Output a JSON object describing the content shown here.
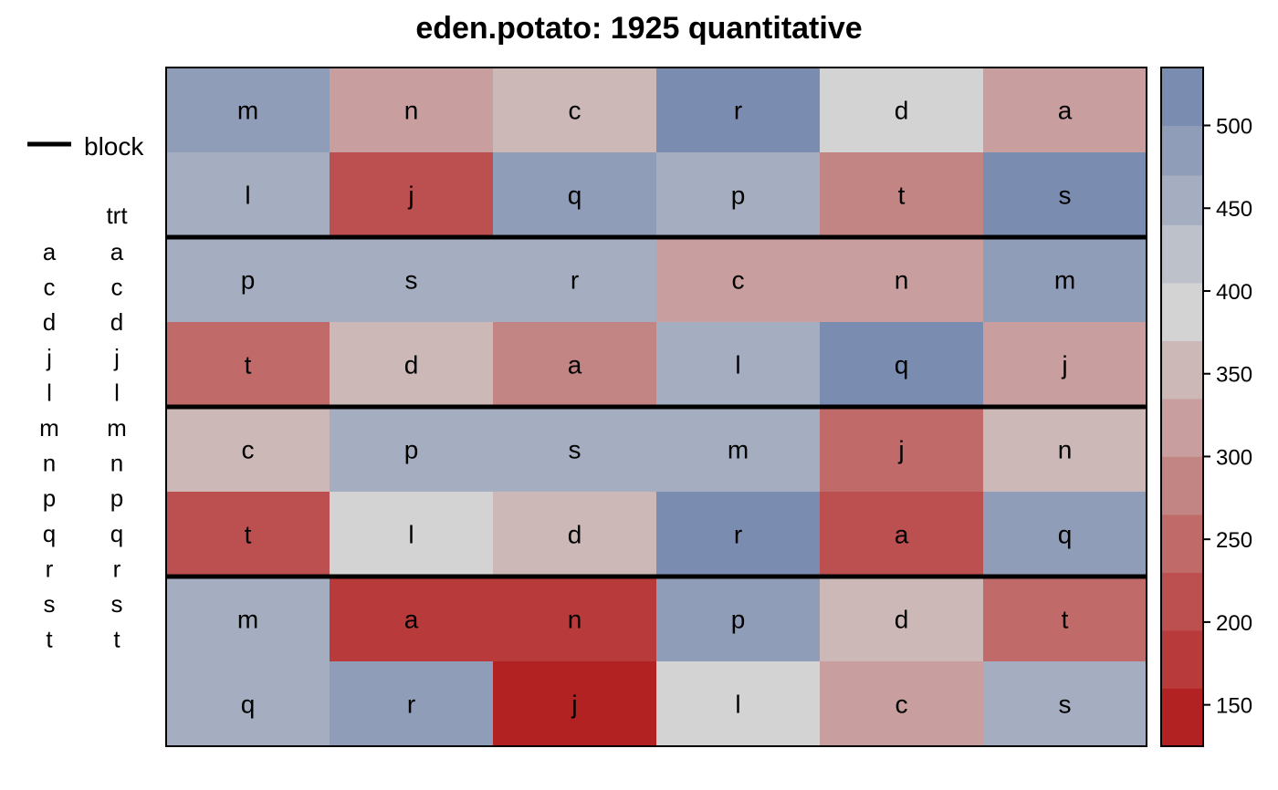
{
  "chart_data": {
    "type": "heatmap",
    "title": "eden.potato: 1925 quantitative",
    "xlabel": "",
    "ylabel": "",
    "rows": 8,
    "cols": 6,
    "cell_labels": [
      [
        "m",
        "n",
        "c",
        "r",
        "d",
        "a"
      ],
      [
        "l",
        "j",
        "q",
        "p",
        "t",
        "s"
      ],
      [
        "p",
        "s",
        "r",
        "c",
        "n",
        "m"
      ],
      [
        "t",
        "d",
        "a",
        "l",
        "q",
        "j"
      ],
      [
        "c",
        "p",
        "s",
        "m",
        "j",
        "n"
      ],
      [
        "t",
        "l",
        "d",
        "r",
        "a",
        "q"
      ],
      [
        "m",
        "a",
        "n",
        "p",
        "d",
        "t"
      ],
      [
        "q",
        "r",
        "j",
        "l",
        "c",
        "s"
      ]
    ],
    "values": [
      [
        480,
        310,
        355,
        510,
        385,
        310
      ],
      [
        440,
        215,
        480,
        440,
        290,
        510
      ],
      [
        440,
        440,
        440,
        310,
        310,
        480
      ],
      [
        250,
        355,
        290,
        440,
        510,
        320
      ],
      [
        350,
        440,
        440,
        440,
        245,
        350
      ],
      [
        215,
        380,
        355,
        510,
        210,
        480
      ],
      [
        440,
        185,
        185,
        480,
        355,
        250
      ],
      [
        440,
        480,
        150,
        390,
        320,
        440
      ]
    ],
    "block_boundaries_after_row": [
      2,
      4,
      6
    ],
    "legend": {
      "line_label": "block",
      "factor_headers": [
        "",
        "trt"
      ],
      "levels_left": [
        "a",
        "c",
        "d",
        "j",
        "l",
        "m",
        "n",
        "p",
        "q",
        "r",
        "s",
        "t"
      ],
      "levels_right": [
        "a",
        "c",
        "d",
        "j",
        "l",
        "m",
        "n",
        "p",
        "q",
        "r",
        "s",
        "t"
      ]
    },
    "colorbar": {
      "min": 125,
      "max": 535,
      "ticks": [
        150,
        200,
        250,
        300,
        350,
        400,
        450,
        500
      ],
      "bands": [
        {
          "from": 125,
          "to": 160,
          "color": "#B22222"
        },
        {
          "from": 160,
          "to": 195,
          "color": "#B93A3A"
        },
        {
          "from": 195,
          "to": 230,
          "color": "#BC5050"
        },
        {
          "from": 230,
          "to": 265,
          "color": "#C06A6A"
        },
        {
          "from": 265,
          "to": 300,
          "color": "#C38484"
        },
        {
          "from": 300,
          "to": 335,
          "color": "#C89E9E"
        },
        {
          "from": 335,
          "to": 370,
          "color": "#CDB8B8"
        },
        {
          "from": 370,
          "to": 405,
          "color": "#D3D3D3"
        },
        {
          "from": 405,
          "to": 440,
          "color": "#BDC1CA"
        },
        {
          "from": 440,
          "to": 470,
          "color": "#A5AEC0"
        },
        {
          "from": 470,
          "to": 500,
          "color": "#8F9DB8"
        },
        {
          "from": 500,
          "to": 535,
          "color": "#7A8DB0"
        }
      ]
    }
  }
}
